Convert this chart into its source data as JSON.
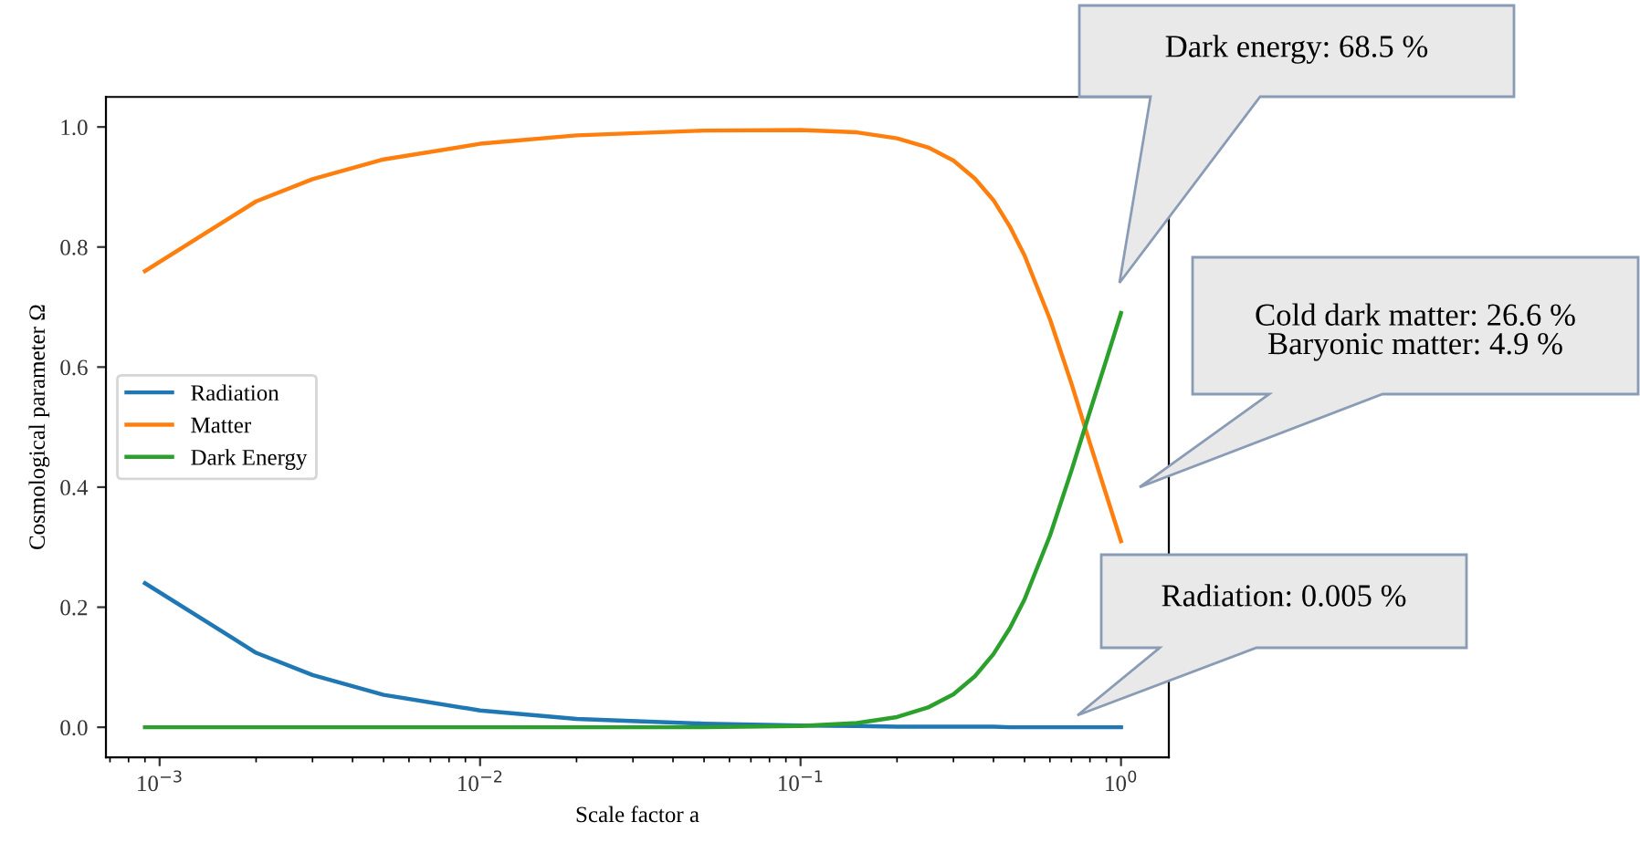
{
  "chart_data": {
    "type": "line",
    "xlabel": "Scale factor a",
    "ylabel": "Cosmological parameter Ω",
    "x": [
      0.0009,
      0.002,
      0.003,
      0.005,
      0.01,
      0.02,
      0.05,
      0.1,
      0.15,
      0.2,
      0.25,
      0.3,
      0.35,
      0.4,
      0.45,
      0.5,
      0.6,
      0.7,
      0.8,
      0.9,
      1.0
    ],
    "series": [
      {
        "name": "Radiation",
        "color": "#1f77b4",
        "values": [
          0.24,
          0.124,
          0.087,
          0.054,
          0.028,
          0.014,
          0.006,
          0.003,
          0.002,
          0.001,
          0.001,
          0.001,
          0.001,
          0.001,
          0.0,
          0.0,
          0.0,
          0.0,
          0.0,
          0.0,
          0.0
        ]
      },
      {
        "name": "Matter",
        "color": "#ff7f0e",
        "values": [
          0.76,
          0.876,
          0.913,
          0.946,
          0.972,
          0.986,
          0.994,
          0.995,
          0.991,
          0.981,
          0.966,
          0.944,
          0.914,
          0.878,
          0.834,
          0.786,
          0.68,
          0.573,
          0.473,
          0.387,
          0.31
        ]
      },
      {
        "name": "Dark Energy",
        "color": "#2ca02c",
        "values": [
          0.0,
          0.0,
          0.0,
          0.0,
          0.0,
          0.0,
          0.0,
          0.002,
          0.007,
          0.017,
          0.033,
          0.055,
          0.085,
          0.122,
          0.165,
          0.213,
          0.319,
          0.427,
          0.526,
          0.612,
          0.69
        ]
      }
    ],
    "log": "x",
    "xlim": [
      0.00068,
      1.41
    ],
    "xticks": [
      {
        "value": 0.001,
        "label": "10$^{−3}$"
      },
      {
        "value": 0.01,
        "label": "10$^{−2}$"
      },
      {
        "value": 0.1,
        "label": "10$^{−1}$"
      },
      {
        "value": 1,
        "label": "10$^{0}$"
      }
    ],
    "ylim": [
      -0.05,
      1.05
    ],
    "yticks": [
      {
        "value": 0,
        "label": "0.0"
      },
      {
        "value": 0.2,
        "label": "0.2"
      },
      {
        "value": 0.4,
        "label": "0.4"
      },
      {
        "value": 0.6,
        "label": "0.6"
      },
      {
        "value": 0.8,
        "label": "0.8"
      },
      {
        "value": 1,
        "label": "1.0"
      }
    ],
    "grid": false,
    "legend": "left",
    "marker": "none",
    "line_style": "solid",
    "annotations": [
      "Dark energy: 68.5 %",
      "Cold dark matter: 26.6 %\nBaryonic matter: 4.9 %",
      "Radiation: 0.005 %"
    ]
  }
}
